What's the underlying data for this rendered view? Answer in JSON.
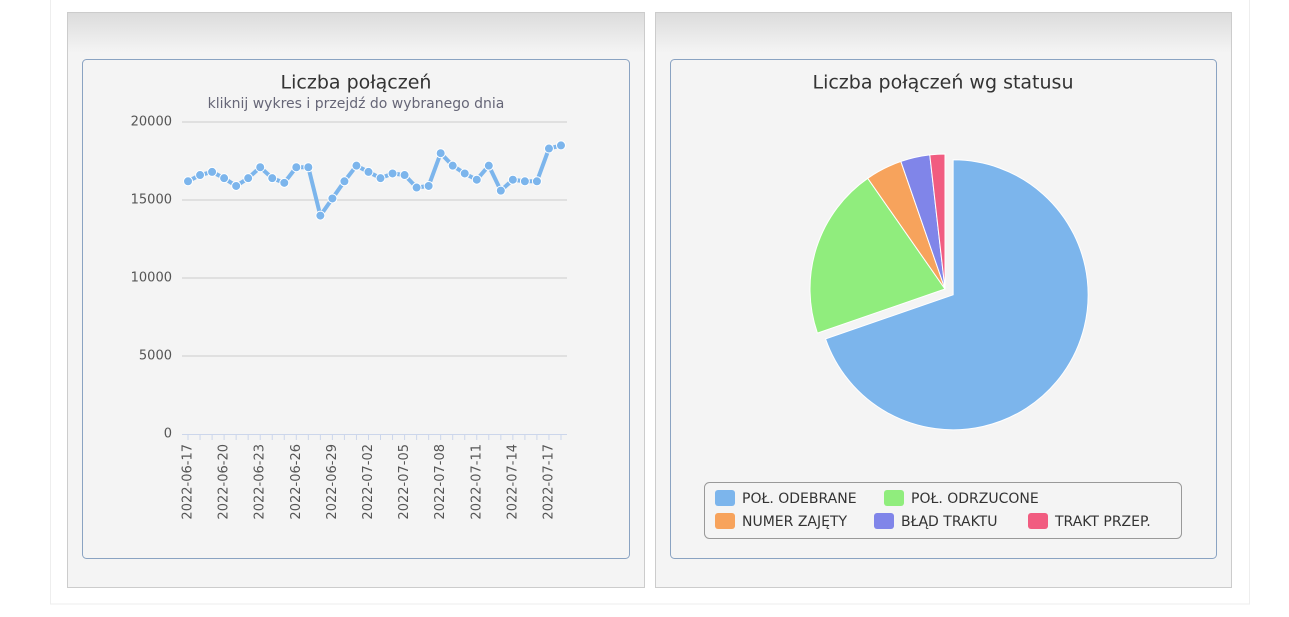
{
  "chart_data": [
    {
      "type": "line",
      "title": "Liczba połączeń",
      "subtitle": "kliknij wykres i przejdź do wybranego dnia",
      "categories": [
        "2022-06-17",
        null,
        null,
        "2022-06-20",
        null,
        null,
        "2022-06-23",
        null,
        null,
        "2022-06-26",
        null,
        null,
        "2022-06-29",
        null,
        null,
        "2022-07-02",
        null,
        null,
        "2022-07-05",
        null,
        null,
        "2022-07-08",
        null,
        null,
        "2022-07-11",
        null,
        null,
        "2022-07-14",
        null,
        null,
        "2022-07-17",
        null
      ],
      "values": [
        16200,
        16600,
        16800,
        16400,
        15900,
        16400,
        17100,
        16400,
        16100,
        17100,
        17100,
        14000,
        15100,
        16200,
        17200,
        16800,
        16400,
        16700,
        16600,
        15800,
        15900,
        18000,
        17200,
        16700,
        16300,
        17200,
        15600,
        16300,
        16200,
        16200,
        18300,
        18500
      ],
      "color": "#7cb5ec",
      "ylim": [
        0,
        20000
      ],
      "yticks": [
        0,
        5000,
        10000,
        15000,
        20000
      ],
      "grid": true
    },
    {
      "type": "pie",
      "title": "Liczba połączeń wg statusu",
      "categories": [
        "POŁ. ODEBRANE",
        "POŁ. ODRZUCONE",
        "NUMER ZAJĘTY",
        "BŁĄD TRAKTU",
        "TRAKT PRZEP."
      ],
      "values": [
        69.7,
        20.6,
        4.4,
        3.5,
        1.8
      ],
      "colors": [
        "#7cb5ec",
        "#90ed7d",
        "#f7a35c",
        "#8085e9",
        "#f15c80"
      ],
      "sliced": "POŁ. ODEBRANE",
      "legend": "bottom"
    }
  ]
}
